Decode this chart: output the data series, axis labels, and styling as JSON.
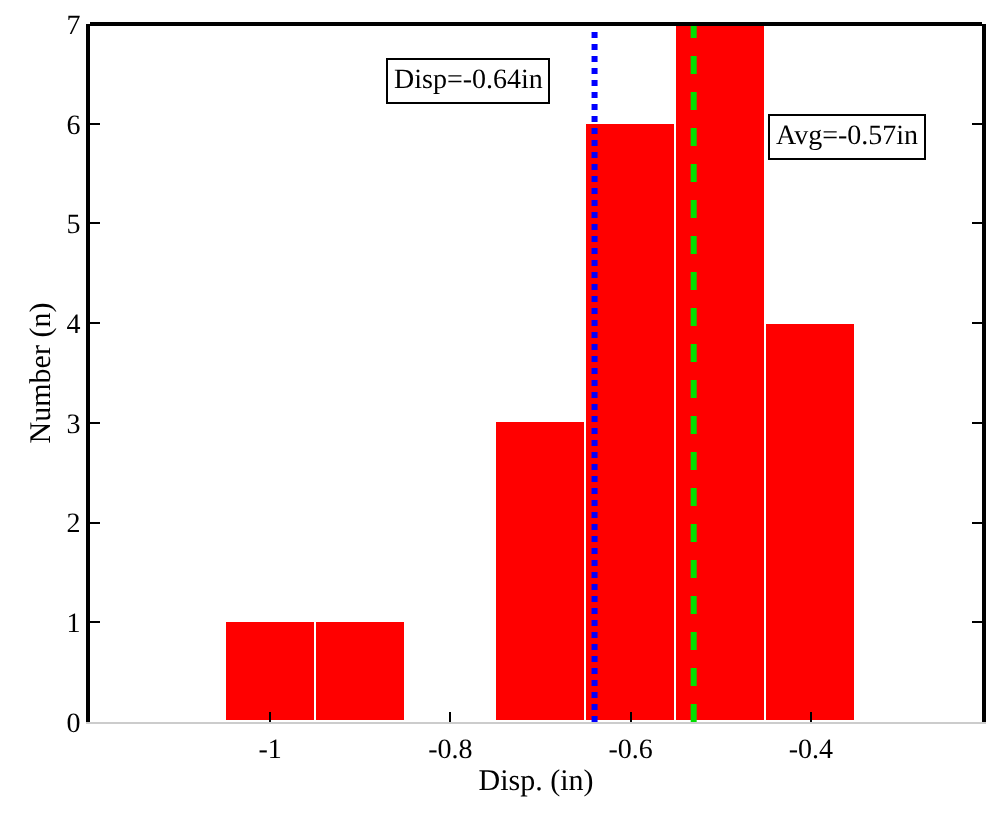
{
  "chart_data": {
    "type": "histogram",
    "xlabel": "Disp. (in)",
    "ylabel": "Number (n)",
    "bins": [
      -1.05,
      -0.95,
      -0.85,
      -0.75,
      -0.65,
      -0.55,
      -0.45,
      -0.35
    ],
    "values": [
      1,
      1,
      0,
      3,
      6,
      7,
      4
    ],
    "color": "#ff0000",
    "xlim": [
      -1.2,
      -0.21
    ],
    "xticks": [
      -1,
      -0.8,
      -0.6,
      -0.4
    ],
    "ylim": [
      0,
      7
    ],
    "yticks": [
      0,
      1,
      2,
      3,
      4,
      5,
      6,
      7
    ],
    "ref_lines": [
      {
        "axis": "x",
        "value": -0.64,
        "label": "Disp=-0.64in",
        "color": "#0000ff",
        "line_style": "dotted"
      },
      {
        "axis": "x",
        "value": -0.53,
        "color": "#00e000",
        "line_style": "dashed"
      }
    ],
    "annotations": [
      "Avg=-0.57in"
    ]
  }
}
